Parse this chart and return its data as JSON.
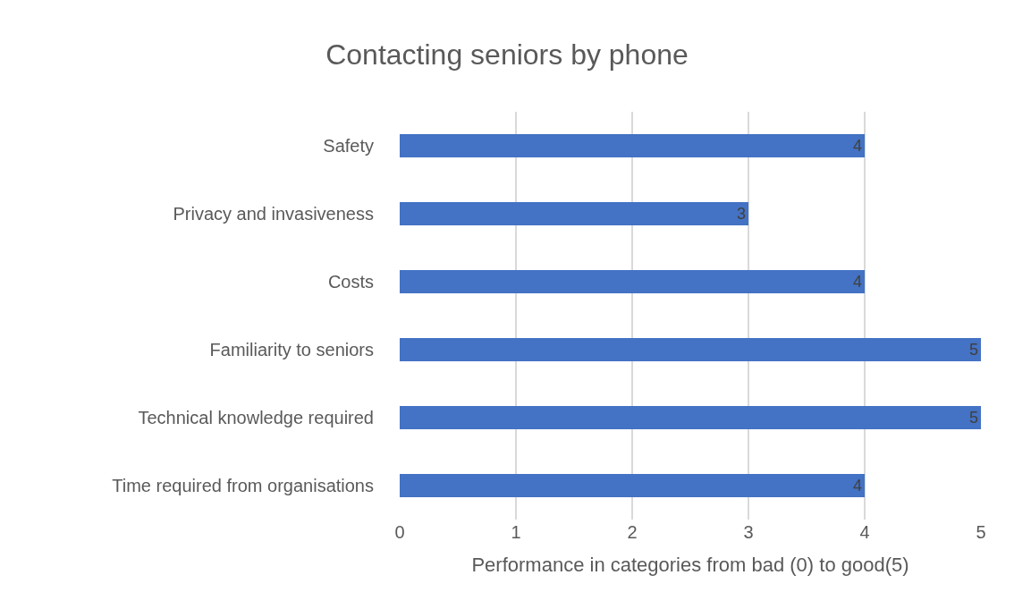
{
  "chart_data": {
    "type": "bar",
    "orientation": "horizontal",
    "title": "Contacting seniors by phone",
    "xlabel": "Performance in categories from bad (0) to good(5)",
    "categories": [
      "Safety",
      "Privacy and invasiveness",
      "Costs",
      "Familiarity to seniors",
      "Technical knowledge required",
      "Time required from organisations"
    ],
    "values": [
      4,
      3,
      4,
      5,
      5,
      4
    ],
    "color": "#4472c4",
    "data_labels": true,
    "xlim": [
      0,
      5
    ],
    "xticks": [
      0,
      1,
      2,
      3,
      4,
      5
    ],
    "grid": "x"
  }
}
